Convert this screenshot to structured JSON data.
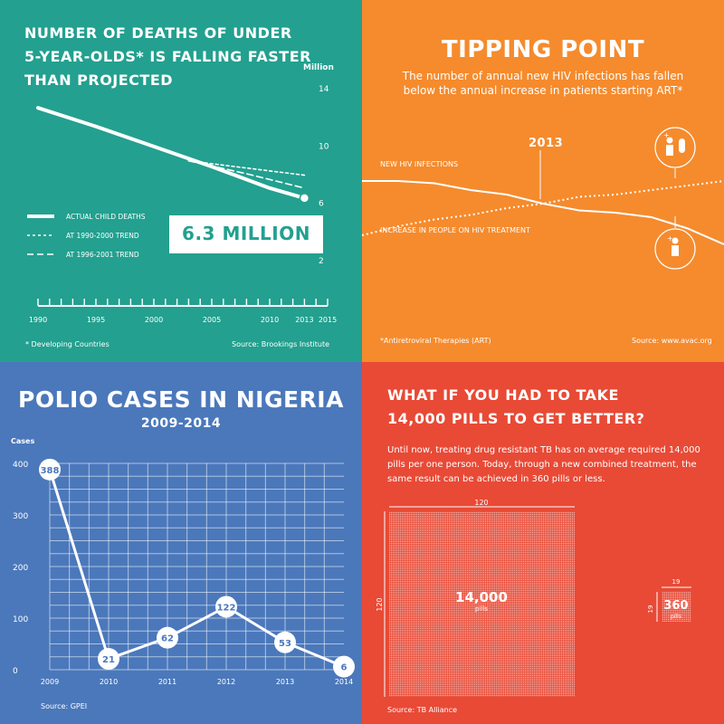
{
  "colors": {
    "teal": "#23a08f",
    "orange": "#f58b2d",
    "blue": "#4b78bb",
    "red": "#e84a36",
    "white": "#ffffff"
  },
  "p1": {
    "title_l1": "NUMBER OF DEATHS OF UNDER",
    "title_l2": "5-YEAR-OLDS* IS FALLING FASTER",
    "title_l3": "THAN PROJECTED",
    "unit": "Million",
    "callout": "6.3 MILLION",
    "legend": [
      "ACTUAL CHILD DEATHS",
      "AT 1990-2000 TREND",
      "AT 1996-2001 TREND"
    ],
    "footnote": "* Developing Countries",
    "source": "Source: Brookings Institute"
  },
  "p2": {
    "title": "TIPPING POINT",
    "subtitle_l1": "The number of annual new HIV infections has fallen",
    "subtitle_l2": "below the annual increase in patients starting ART*",
    "year_marker": "2013",
    "label_infections": "NEW HIV INFECTIONS",
    "label_treatment": "INCREASE IN PEOPLE ON HIV TREATMENT",
    "footnote": "*Antiretroviral Therapies (ART)",
    "source": "Source: www.avac.org"
  },
  "p3": {
    "title": "POLIO CASES IN NIGERIA",
    "subtitle": "2009-2014",
    "yaxis_title": "Cases",
    "source": "Source: GPEI"
  },
  "p4": {
    "title_l1": "WHAT IF YOU HAD TO TAKE",
    "title_l2": "14,000 PILLS TO GET BETTER?",
    "body_l1": "Until now, treating drug resistant TB has on average required 14,000",
    "body_l2": "pills per one person. Today, through a new combined treatment, the",
    "body_l3": "same result can be achieved in 360 pills or less.",
    "big_value": "14,000",
    "big_unit": "pills",
    "big_side": "120",
    "small_value": "360",
    "small_unit": "pills",
    "small_side": "19",
    "source": "Source: TB Alliance"
  },
  "chart_data": [
    {
      "type": "line",
      "title": "NUMBER OF DEATHS OF UNDER 5-YEAR-OLDS* IS FALLING FASTER THAN PROJECTED",
      "ylabel": "Million",
      "x_ticks": [
        1990,
        1995,
        2000,
        2005,
        2010,
        2013,
        2015
      ],
      "y_ticks": [
        2,
        6,
        10,
        14
      ],
      "xlim": [
        1990,
        2015
      ],
      "ylim": [
        2,
        14
      ],
      "series": [
        {
          "name": "ACTUAL CHILD DEATHS",
          "style": "solid",
          "x": [
            1990,
            1995,
            2000,
            2005,
            2010,
            2013
          ],
          "y": [
            12.6,
            11.3,
            9.9,
            8.5,
            7.0,
            6.3
          ]
        },
        {
          "name": "AT 1990-2000 TREND",
          "style": "dotted",
          "x": [
            2003,
            2008,
            2013
          ],
          "y": [
            8.9,
            8.4,
            7.9
          ]
        },
        {
          "name": "AT 1996-2001 TREND",
          "style": "dashed",
          "x": [
            2003,
            2008,
            2013
          ],
          "y": [
            8.9,
            8.0,
            7.0
          ]
        }
      ],
      "annotation": "6.3 MILLION",
      "grid": false
    },
    {
      "type": "line",
      "title": "TIPPING POINT",
      "series": [
        {
          "name": "NEW HIV INFECTIONS",
          "x": [
            0,
            10,
            20,
            30,
            40,
            50,
            60,
            70,
            80,
            90,
            100
          ],
          "y": [
            60,
            60,
            59,
            56,
            54,
            50,
            47,
            46,
            44,
            39,
            32
          ]
        },
        {
          "name": "INCREASE IN PEOPLE ON HIV TREATMENT",
          "x": [
            0,
            10,
            20,
            30,
            40,
            50,
            60,
            70,
            80,
            90,
            100
          ],
          "y": [
            36,
            40,
            43,
            45,
            48,
            50,
            53,
            54,
            56,
            58,
            60
          ]
        }
      ],
      "annotation": "2013",
      "grid": false
    },
    {
      "type": "line",
      "title": "POLIO CASES IN NIGERIA",
      "subtitle": "2009-2014",
      "ylabel": "Cases",
      "categories": [
        "2009",
        "2010",
        "2011",
        "2012",
        "2013",
        "2014"
      ],
      "values": [
        388,
        21,
        62,
        122,
        53,
        6
      ],
      "y_ticks": [
        0,
        100,
        200,
        300,
        400
      ],
      "ylim": [
        0,
        400
      ],
      "grid": true
    },
    {
      "type": "bar",
      "title": "WHAT IF YOU HAD TO TAKE 14,000 PILLS TO GET BETTER?",
      "categories": [
        "14,000 pills",
        "360 pills"
      ],
      "values": [
        14000,
        360
      ]
    }
  ]
}
